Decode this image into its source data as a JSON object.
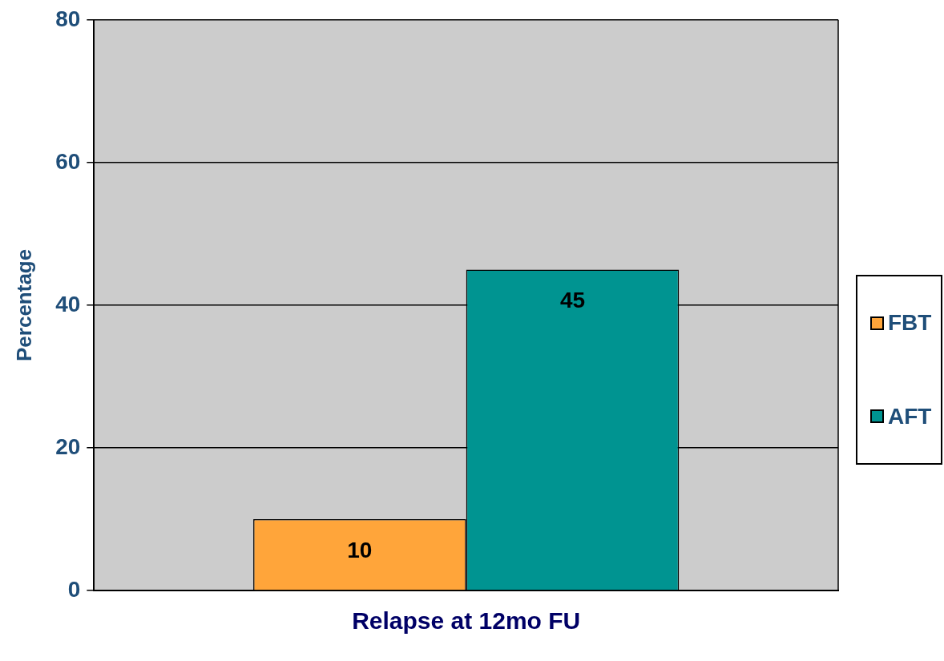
{
  "chart_data": {
    "type": "bar",
    "categories": [
      "Relapse at 12mo FU"
    ],
    "ylabel": "Percentage",
    "series": [
      {
        "name": "FBT",
        "color": "#ffa53a",
        "values": [
          10
        ]
      },
      {
        "name": "AFT",
        "color": "#009491",
        "values": [
          45
        ]
      }
    ],
    "ylim": [
      0,
      80
    ],
    "yticks": [
      0,
      20,
      40,
      60,
      80
    ],
    "grid": "y",
    "legend": "right",
    "data_labels": true
  }
}
